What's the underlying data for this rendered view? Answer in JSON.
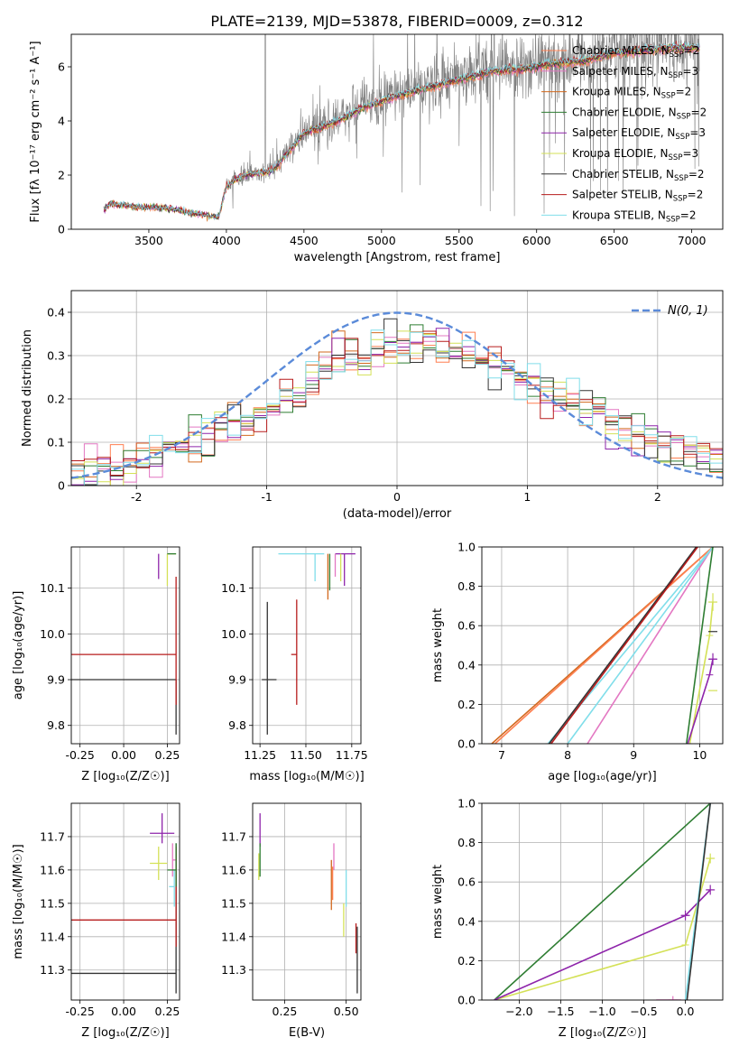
{
  "figure_title": "PLATE=2139, MJD=53878, FIBERID=0009, z=0.312",
  "colors": {
    "chabrier_miles": "#ff7f50",
    "salpeter_miles": "#e377c2",
    "kroupa_miles": "#d2691e",
    "chabrier_elodie": "#2e7d32",
    "salpeter_elodie": "#8e24aa",
    "kroupa_elodie": "#d4e157",
    "chabrier_stelib": "#333333",
    "salpeter_stelib": "#b71c1c",
    "kroupa_stelib": "#80deea",
    "data_gray": "#808080",
    "normal_curve": "#5b8bd9",
    "grid": "#b0b0b0"
  },
  "chart_data": [
    {
      "id": "spectrum",
      "type": "line",
      "xlabel": "wavelength [Angstrom, rest frame]",
      "ylabel": "Flux [fλ 10⁻¹⁷ erg cm⁻² s⁻¹ A⁻¹]",
      "xlim": [
        3000,
        7200
      ],
      "ylim": [
        0,
        7.2
      ],
      "xticks": [
        3500,
        4000,
        4500,
        5000,
        5500,
        6000,
        6500,
        7000
      ],
      "yticks": [
        0,
        2,
        4,
        6
      ],
      "grid": false,
      "legend_position": "top-right",
      "observed_start": 3210,
      "observed_end": 7050,
      "continuum_x": [
        3210,
        3250,
        3400,
        3600,
        3800,
        3950,
        4000,
        4100,
        4300,
        4500,
        4700,
        4900,
        5100,
        5300,
        5500,
        5700,
        5900,
        6100,
        6300,
        6500,
        6700,
        6900,
        7050
      ],
      "continuum_y": [
        0.75,
        0.95,
        0.85,
        0.8,
        0.6,
        0.45,
        1.6,
        2.0,
        2.2,
        3.6,
        4.0,
        4.6,
        5.0,
        5.3,
        5.6,
        5.9,
        6.0,
        6.2,
        6.3,
        6.6,
        6.7,
        6.8,
        6.8
      ],
      "series": [
        {
          "name": "Chabrier MILES",
          "nssp": "2",
          "color_key": "chabrier_miles"
        },
        {
          "name": "Salpeter MILES",
          "nssp": "3",
          "color_key": "salpeter_miles"
        },
        {
          "name": "Kroupa MILES",
          "nssp": "2",
          "color_key": "kroupa_miles"
        },
        {
          "name": "Chabrier ELODIE",
          "nssp": "2",
          "color_key": "chabrier_elodie"
        },
        {
          "name": "Salpeter ELODIE",
          "nssp": "3",
          "color_key": "salpeter_elodie"
        },
        {
          "name": "Kroupa ELODIE",
          "nssp": "3",
          "color_key": "kroupa_elodie"
        },
        {
          "name": "Chabrier STELIB",
          "nssp": "2",
          "color_key": "chabrier_stelib"
        },
        {
          "name": "Salpeter STELIB",
          "nssp": "2",
          "color_key": "salpeter_stelib"
        },
        {
          "name": "Kroupa STELIB",
          "nssp": "2",
          "color_key": "kroupa_stelib"
        }
      ]
    },
    {
      "id": "residuals",
      "type": "line",
      "xlabel": "(data-model)/error",
      "ylabel": "Normed distribution",
      "xlim": [
        -2.5,
        2.5
      ],
      "ylim": [
        0,
        0.45
      ],
      "xticks": [
        -2,
        -1,
        0,
        1,
        2
      ],
      "yticks": [
        0.0,
        0.1,
        0.2,
        0.3,
        0.4
      ],
      "grid": true,
      "legend_position": "top-right",
      "legend_label": "N(0, 1)",
      "bins": 50,
      "reference_hist": [
        0.03,
        0.03,
        0.04,
        0.04,
        0.05,
        0.06,
        0.07,
        0.08,
        0.09,
        0.1,
        0.11,
        0.13,
        0.15,
        0.17,
        0.18,
        0.19,
        0.21,
        0.23,
        0.25,
        0.27,
        0.29,
        0.3,
        0.31,
        0.32,
        0.32,
        0.32,
        0.33,
        0.33,
        0.32,
        0.31,
        0.3,
        0.29,
        0.28,
        0.27,
        0.25,
        0.24,
        0.22,
        0.2,
        0.19,
        0.17,
        0.16,
        0.14,
        0.13,
        0.12,
        0.11,
        0.1,
        0.09,
        0.08,
        0.07,
        0.06
      ]
    },
    {
      "id": "age_vs_z",
      "type": "scatter",
      "xlabel": "Z [log₁₀(Z/Z☉)]",
      "ylabel": "age  [log₁₀(age/yr)]",
      "xlim": [
        -0.3,
        0.32
      ],
      "ylim": [
        9.76,
        10.19
      ],
      "xticks": [
        -0.25,
        0.0,
        0.25
      ],
      "xtick_labels": [
        "-0.25",
        "0.00",
        "0.25"
      ],
      "yticks": [
        9.8,
        9.9,
        10.0,
        10.1
      ],
      "ytick_labels": [
        "9.8",
        "9.9",
        "10.0",
        "10.1"
      ],
      "grid": true,
      "points": [
        {
          "series": "chabrier_stelib",
          "x": 0.3,
          "y": 9.9,
          "xerr_low": 0.6,
          "xerr_high": 0.0,
          "yerr_low": 0.12,
          "yerr_high": 0.0
        },
        {
          "series": "salpeter_stelib",
          "x": 0.3,
          "y": 9.955,
          "xerr_low": 0.6,
          "xerr_high": 0.0,
          "yerr_low": 0.11,
          "yerr_high": 0.17
        },
        {
          "series": "salpeter_elodie",
          "x": 0.2,
          "y": 10.175,
          "xerr_low": 0.0,
          "xerr_high": 0.0,
          "yerr_low": 0.055,
          "yerr_high": 0.0
        },
        {
          "series": "kroupa_elodie",
          "x": 0.25,
          "y": 10.175,
          "xerr_low": 0.0,
          "xerr_high": 0.05,
          "yerr_low": 0.07,
          "yerr_high": 0.0
        },
        {
          "series": "kroupa_stelib",
          "x": 0.28,
          "y": 10.175,
          "xerr_low": 0.0,
          "xerr_high": 0.0,
          "yerr_low": 0.0,
          "yerr_high": 0.0
        },
        {
          "series": "chabrier_elodie",
          "x": 0.3,
          "y": 10.175,
          "xerr_low": 0.05,
          "xerr_high": 0.0,
          "yerr_low": 0.0,
          "yerr_high": 0.0
        }
      ]
    },
    {
      "id": "age_vs_mass",
      "type": "scatter",
      "xlabel": "mass [log₁₀(M/M☉)]",
      "ylabel": "",
      "xlim": [
        11.21,
        11.8
      ],
      "ylim": [
        9.76,
        10.19
      ],
      "xticks": [
        11.25,
        11.5,
        11.75
      ],
      "xtick_labels": [
        "11.25",
        "11.50",
        "11.75"
      ],
      "yticks": [
        9.8,
        9.9,
        10.0,
        10.1
      ],
      "ytick_labels": [
        "9.8",
        "9.9",
        "10.0",
        "10.1"
      ],
      "grid": true,
      "points": [
        {
          "series": "chabrier_stelib",
          "x": 11.29,
          "y": 9.9,
          "xerr_low": 0.03,
          "xerr_high": 0.05,
          "yerr_low": 0.12,
          "yerr_high": 0.17
        },
        {
          "series": "salpeter_stelib",
          "x": 11.45,
          "y": 9.955,
          "xerr_low": 0.03,
          "xerr_high": 0.0,
          "yerr_low": 0.11,
          "yerr_high": 0.12
        },
        {
          "series": "kroupa_stelib",
          "x": 11.55,
          "y": 10.175,
          "xerr_low": 0.2,
          "xerr_high": 0.05,
          "yerr_low": 0.06,
          "yerr_high": 0.0
        },
        {
          "series": "kroupa_miles",
          "x": 11.62,
          "y": 10.175,
          "xerr_low": 0.0,
          "xerr_high": 0.0,
          "yerr_low": 0.1,
          "yerr_high": 0.0
        },
        {
          "series": "salpeter_elodie",
          "x": 11.71,
          "y": 10.175,
          "xerr_low": 0.05,
          "xerr_high": 0.06,
          "yerr_low": 0.07,
          "yerr_high": 0.0
        },
        {
          "series": "kroupa_elodie",
          "x": 11.69,
          "y": 10.175,
          "xerr_low": 0.0,
          "xerr_high": 0.0,
          "yerr_low": 0.06,
          "yerr_high": 0.0
        },
        {
          "series": "salpeter_miles",
          "x": 11.66,
          "y": 10.175,
          "xerr_low": 0.0,
          "xerr_high": 0.0,
          "yerr_low": 0.05,
          "yerr_high": 0.0
        },
        {
          "series": "chabrier_elodie",
          "x": 11.63,
          "y": 10.175,
          "xerr_low": 0.0,
          "xerr_high": 0.0,
          "yerr_low": 0.08,
          "yerr_high": 0.0
        }
      ]
    },
    {
      "id": "mass_weight_vs_age",
      "type": "line",
      "xlabel": "age  [log₁₀(age/yr)]",
      "ylabel": "mass weight",
      "xlim": [
        6.7,
        10.35
      ],
      "ylim": [
        0,
        1
      ],
      "xticks": [
        7,
        8,
        9,
        10
      ],
      "yticks": [
        0.0,
        0.2,
        0.4,
        0.6,
        0.8,
        1.0
      ],
      "ytick_labels": [
        "0.0",
        "0.2",
        "0.4",
        "0.6",
        "0.8",
        "1.0"
      ],
      "grid": true,
      "series": [
        {
          "color_key": "kroupa_miles",
          "x": [
            6.85,
            10.2
          ],
          "y": [
            0.0,
            1.0
          ]
        },
        {
          "color_key": "chabrier_miles",
          "x": [
            6.9,
            10.2
          ],
          "y": [
            0.0,
            1.0
          ]
        },
        {
          "color_key": "kroupa_stelib",
          "x": [
            7.7,
            10.2
          ],
          "y": [
            0.0,
            1.0
          ]
        },
        {
          "color_key": "chabrier_stelib",
          "x": [
            7.72,
            9.95
          ],
          "y": [
            0.0,
            1.0
          ]
        },
        {
          "color_key": "salpeter_stelib",
          "x": [
            7.75,
            9.97
          ],
          "y": [
            0.0,
            1.0
          ]
        },
        {
          "color_key": "salpeter_miles",
          "x": [
            8.3,
            10.2
          ],
          "y": [
            0.0,
            1.0
          ]
        },
        {
          "color_key": "kroupa_stelib",
          "x": [
            8.0,
            10.2
          ],
          "y": [
            0.0,
            1.0
          ]
        },
        {
          "color_key": "chabrier_elodie",
          "x": [
            9.8,
            10.2
          ],
          "y": [
            0.0,
            1.0
          ]
        },
        {
          "color_key": "kroupa_elodie",
          "x": [
            9.85,
            10.15,
            10.2
          ],
          "y": [
            0.0,
            0.55,
            0.72
          ]
        },
        {
          "color_key": "salpeter_elodie",
          "x": [
            9.82,
            10.15,
            10.2
          ],
          "y": [
            0.0,
            0.35,
            0.43
          ]
        }
      ],
      "error_markers": [
        {
          "color_key": "kroupa_elodie",
          "x": 10.2,
          "y": 0.72,
          "yerr": 0.045
        },
        {
          "color_key": "kroupa_elodie",
          "x": 10.2,
          "y": 0.27,
          "yerr": 0.0
        },
        {
          "color_key": "salpeter_elodie",
          "x": 10.2,
          "y": 0.43,
          "yerr": 0.03
        },
        {
          "color_key": "chabrier_stelib",
          "x": 10.2,
          "y": 0.57,
          "yerr": 0.0
        }
      ]
    },
    {
      "id": "mass_vs_z",
      "type": "scatter",
      "xlabel": "Z [log₁₀(Z/Z☉)]",
      "ylabel": "mass [log₁₀(M/M☉)]",
      "xlim": [
        -0.3,
        0.32
      ],
      "ylim": [
        11.21,
        11.8
      ],
      "xticks": [
        -0.25,
        0.0,
        0.25
      ],
      "xtick_labels": [
        "-0.25",
        "0.00",
        "0.25"
      ],
      "yticks": [
        11.3,
        11.4,
        11.5,
        11.6,
        11.7
      ],
      "ytick_labels": [
        "11.3",
        "11.4",
        "11.5",
        "11.6",
        "11.7"
      ],
      "grid": true,
      "points": [
        {
          "series": "chabrier_stelib",
          "x": 0.3,
          "y": 11.29,
          "xerr_low": 0.6,
          "xerr_high": 0.0,
          "yerr_low": 0.06,
          "yerr_high": 0.39
        },
        {
          "series": "salpeter_stelib",
          "x": 0.3,
          "y": 11.45,
          "xerr_low": 0.6,
          "xerr_high": 0.0,
          "yerr_low": 0.08,
          "yerr_high": 0.22
        },
        {
          "series": "salpeter_elodie",
          "x": 0.22,
          "y": 11.71,
          "xerr_low": 0.07,
          "xerr_high": 0.07,
          "yerr_low": 0.03,
          "yerr_high": 0.06
        },
        {
          "series": "kroupa_elodie",
          "x": 0.2,
          "y": 11.62,
          "xerr_low": 0.05,
          "xerr_high": 0.05,
          "yerr_low": 0.05,
          "yerr_high": 0.05
        },
        {
          "series": "salpeter_miles",
          "x": 0.28,
          "y": 11.63,
          "xerr_low": 0.0,
          "xerr_high": 0.02,
          "yerr_low": 0.05,
          "yerr_high": 0.05
        },
        {
          "series": "kroupa_stelib",
          "x": 0.29,
          "y": 11.55,
          "xerr_low": 0.03,
          "xerr_high": 0.0,
          "yerr_low": 0.06,
          "yerr_high": 0.05
        },
        {
          "series": "chabrier_elodie",
          "x": 0.3,
          "y": 11.6,
          "xerr_low": 0.05,
          "xerr_high": 0.0,
          "yerr_low": 0.05,
          "yerr_high": 0.08
        }
      ]
    },
    {
      "id": "mass_vs_ebv",
      "type": "scatter",
      "xlabel": "E(B-V)",
      "ylabel": "",
      "xlim": [
        0.12,
        0.56
      ],
      "ylim": [
        11.21,
        11.8
      ],
      "xticks": [
        0.25,
        0.5
      ],
      "xtick_labels": [
        "0.25",
        "0.50"
      ],
      "yticks": [
        11.3,
        11.4,
        11.5,
        11.6,
        11.7
      ],
      "ytick_labels": [
        "11.3",
        "11.4",
        "11.5",
        "11.6",
        "11.7"
      ],
      "grid": true,
      "points": [
        {
          "series": "salpeter_elodie",
          "x": 0.15,
          "y": 11.71,
          "xerr_low": 0.0,
          "xerr_high": 0.0,
          "yerr_low": 0.04,
          "yerr_high": 0.06
        },
        {
          "series": "kroupa_elodie",
          "x": 0.145,
          "y": 11.6,
          "xerr_low": 0.0,
          "xerr_high": 0.0,
          "yerr_low": 0.03,
          "yerr_high": 0.05
        },
        {
          "series": "chabrier_elodie",
          "x": 0.15,
          "y": 11.63,
          "xerr_low": 0.0,
          "xerr_high": 0.0,
          "yerr_low": 0.05,
          "yerr_high": 0.05
        },
        {
          "series": "salpeter_miles",
          "x": 0.45,
          "y": 11.64,
          "xerr_low": 0.0,
          "xerr_high": 0.0,
          "yerr_low": 0.04,
          "yerr_high": 0.04
        },
        {
          "series": "kroupa_miles",
          "x": 0.44,
          "y": 11.55,
          "xerr_low": 0.0,
          "xerr_high": 0.0,
          "yerr_low": 0.07,
          "yerr_high": 0.08
        },
        {
          "series": "chabrier_miles",
          "x": 0.445,
          "y": 11.56,
          "xerr_low": 0.0,
          "xerr_high": 0.0,
          "yerr_low": 0.05,
          "yerr_high": 0.05
        },
        {
          "series": "kroupa_stelib",
          "x": 0.5,
          "y": 11.55,
          "xerr_low": 0.0,
          "xerr_high": 0.0,
          "yerr_low": 0.06,
          "yerr_high": 0.05
        },
        {
          "series": "kroupa_elodie",
          "x": 0.49,
          "y": 11.45,
          "xerr_low": 0.0,
          "xerr_high": 0.0,
          "yerr_low": 0.05,
          "yerr_high": 0.05
        },
        {
          "series": "salpeter_stelib",
          "x": 0.54,
          "y": 11.4,
          "xerr_low": 0.0,
          "xerr_high": 0.0,
          "yerr_low": 0.05,
          "yerr_high": 0.04
        },
        {
          "series": "chabrier_stelib",
          "x": 0.545,
          "y": 11.33,
          "xerr_low": 0.0,
          "xerr_high": 0.0,
          "yerr_low": 0.1,
          "yerr_high": 0.1
        }
      ]
    },
    {
      "id": "mass_weight_vs_z",
      "type": "line",
      "xlabel": "Z [log₁₀(Z/Z☉)]",
      "ylabel": "mass weight",
      "xlim": [
        -2.45,
        0.45
      ],
      "ylim": [
        0,
        1
      ],
      "xticks": [
        -2.0,
        -1.5,
        -1.0,
        -0.5,
        0.0
      ],
      "xtick_labels": [
        "−2.0",
        "−1.5",
        "−1.0",
        "−0.5",
        "0.0"
      ],
      "yticks": [
        0.0,
        0.2,
        0.4,
        0.6,
        0.8,
        1.0
      ],
      "ytick_labels": [
        "0.0",
        "0.2",
        "0.4",
        "0.6",
        "0.8",
        "1.0"
      ],
      "grid": true,
      "series": [
        {
          "color_key": "chabrier_elodie",
          "x": [
            -2.3,
            0.3
          ],
          "y": [
            0.0,
            1.0
          ]
        },
        {
          "color_key": "kroupa_elodie",
          "x": [
            -2.3,
            0.0,
            0.3
          ],
          "y": [
            0.0,
            0.28,
            0.72
          ]
        },
        {
          "color_key": "salpeter_elodie",
          "x": [
            -2.3,
            0.0,
            0.3
          ],
          "y": [
            0.0,
            0.43,
            0.56
          ]
        },
        {
          "color_key": "kroupa_stelib",
          "x": [
            0.0,
            0.3
          ],
          "y": [
            0.0,
            1.0
          ]
        },
        {
          "color_key": "chabrier_stelib",
          "x": [
            0.02,
            0.3
          ],
          "y": [
            0.0,
            1.0
          ]
        },
        {
          "color_key": "salpeter_miles",
          "x": [
            -0.35,
            -0.05
          ],
          "y": [
            0.0,
            0.0
          ]
        }
      ],
      "error_markers": [
        {
          "color_key": "kroupa_elodie",
          "x": 0.3,
          "y": 0.72,
          "yerr": 0.025
        },
        {
          "color_key": "salpeter_elodie",
          "x": 0.3,
          "y": 0.56,
          "yerr": 0.025
        },
        {
          "color_key": "salpeter_elodie",
          "x": 0.0,
          "y": 0.43,
          "yerr": 0.025
        },
        {
          "color_key": "salpeter_miles",
          "x": -0.15,
          "y": 0.0,
          "yerr": 0.02
        }
      ]
    }
  ]
}
